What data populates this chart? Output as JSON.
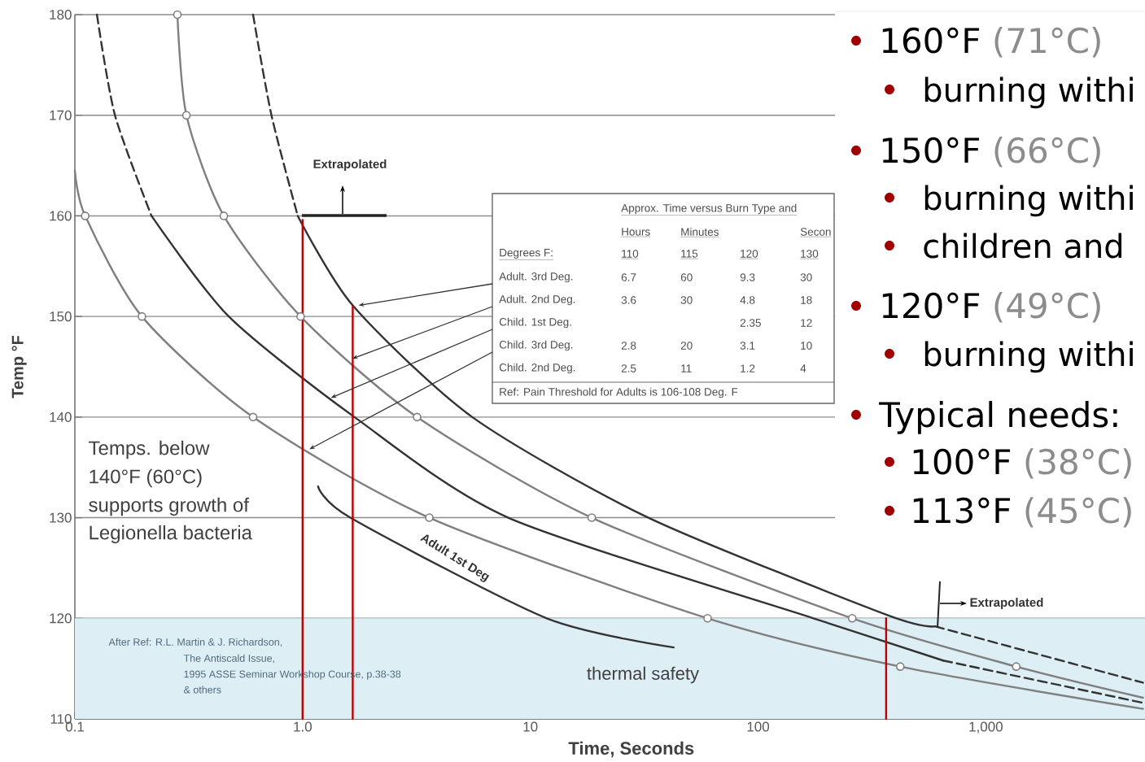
{
  "chart_data": [
    {
      "type": "line",
      "xlabel": "Time, Seconds",
      "ylabel": "Temp °F",
      "log": "x",
      "xlim": [
        0.1,
        5000
      ],
      "ylim": [
        110,
        180
      ],
      "xticks": [
        0.1,
        {
          "value": 1,
          "label": "1.0"
        },
        10,
        100,
        {
          "value": 1000,
          "label": "1,000"
        }
      ],
      "yticks": [
        110,
        120,
        130,
        140,
        150,
        160,
        170,
        180
      ],
      "grid": "y",
      "bands": [
        {
          "axis": "y",
          "from": 110,
          "to": 120,
          "color": "#ddeef5"
        }
      ],
      "series": [
        {
          "color": "#7f7f7f",
          "x": [
            0.1,
            0.111,
            0.197,
            0.606,
            3.6,
            60,
            421,
            4900
          ],
          "values": [
            164.5,
            160,
            150,
            140,
            130,
            120,
            115.2,
            111
          ]
        },
        {
          "color": "#7f7f7f",
          "x": [
            0.282,
            0.309,
            0.451,
            0.98,
            3.18,
            18.6,
            259,
            1360,
            4900
          ],
          "values": [
            180,
            170,
            160,
            150,
            140,
            130,
            120,
            115.2,
            112.1
          ]
        },
        {
          "color": "#333333",
          "line_style": "dashed",
          "x": [
            0.125,
            0.15,
            0.217
          ],
          "values": [
            180,
            170,
            160
          ]
        },
        {
          "color": "#333333",
          "x": [
            0.217,
            0.474,
            1.69,
            8,
            175,
            650
          ],
          "values": [
            160,
            150,
            140,
            130,
            120,
            115.8
          ]
        },
        {
          "color": "#333333",
          "line_style": "dashed",
          "x": [
            650,
            4900
          ],
          "values": [
            115.8,
            111.6
          ]
        },
        {
          "color": "#333333",
          "line_style": "dashed",
          "x": [
            0.606,
            0.73,
            0.952
          ],
          "values": [
            180,
            170,
            160
          ]
        },
        {
          "color": "#333333",
          "x": [
            0.952,
            1.66,
            5.56,
            33,
            372,
            599
          ],
          "values": [
            160,
            151.1,
            140,
            130,
            120.3,
            119.2
          ]
        },
        {
          "color": "#333333",
          "line_style": "dashed",
          "x": [
            599,
            4900
          ],
          "values": [
            119.2,
            113.6
          ]
        },
        {
          "name": "Adult 1st Deg",
          "color": "#333333",
          "x": [
            1.17,
            1.62,
            11.8,
            42.6
          ],
          "values": [
            133.1,
            130,
            120,
            117.1
          ]
        },
        {
          "color": "#c00000",
          "x": [
            1,
            1
          ],
          "values": [
            110,
            159.6
          ]
        },
        {
          "color": "#c00000",
          "x": [
            1.66,
            1.66
          ],
          "values": [
            110,
            151
          ]
        },
        {
          "color": "#c00000",
          "x": [
            365,
            365
          ],
          "values": [
            110,
            120
          ]
        },
        {
          "type": "scatter",
          "marker": "circle",
          "color": "#7f7f7f",
          "x": [
            0.111,
            0.197,
            0.606,
            3.6,
            60,
            421
          ],
          "values": [
            160,
            150,
            140,
            130,
            120,
            115.2
          ]
        },
        {
          "type": "scatter",
          "marker": "circle",
          "color": "#7f7f7f",
          "x": [
            0.282,
            0.309,
            0.451,
            0.98,
            3.18,
            18.6,
            259,
            1360
          ],
          "values": [
            180,
            170,
            160,
            150,
            140,
            130,
            120,
            115.2
          ]
        }
      ],
      "annotations": [
        "Extrapolated",
        "Extrapolated",
        "Temps. below",
        "140°F (60°C)",
        "supports growth of",
        "Legionella bacteria",
        "thermal safety",
        "After Ref: R.L. Martin & J. Richardson,",
        "The Antiscald Issue,",
        "1995 ASSE Seminar Workshop Course, p.38-38",
        "& others",
        "Approx. Time versus Burn Type and",
        "Hours",
        "Minutes",
        "Secon",
        "Degrees F:",
        "110",
        "115",
        "120",
        "130",
        {
          "text": "Adult. 3rd Deg.",
          "x": 1.76,
          "y": 151.1
        },
        "6.7",
        "60",
        "9.3",
        "30",
        {
          "text": "Adult. 2nd Deg.",
          "x": 1.65,
          "y": 145.8
        },
        "3.6",
        "30",
        "4.8",
        "18",
        {
          "text": "Child. 1st Deg.",
          "x": 1.33,
          "y": 141.9
        },
        "2.35",
        "12",
        {
          "text": "Child. 3rd Deg.",
          "x": 1.07,
          "y": 136.8
        },
        "2.8",
        "20",
        "3.1",
        "10",
        "Child. 2nd Deg.",
        "2.5",
        "11",
        "1.2",
        "4",
        "Ref: Pain Threshold for Adults is 106-108 Deg. F"
      ]
    },
    {
      "type": "other",
      "annotations": [
        "160°F",
        "(71°C)",
        "burning withi",
        "150°F",
        "(66°C)",
        "burning withi",
        "children and",
        "120°F",
        "(49°C)",
        "burning withi",
        "Typical needs:",
        "100°F",
        "(38°C)",
        "113°F",
        "(45°C)"
      ]
    }
  ]
}
